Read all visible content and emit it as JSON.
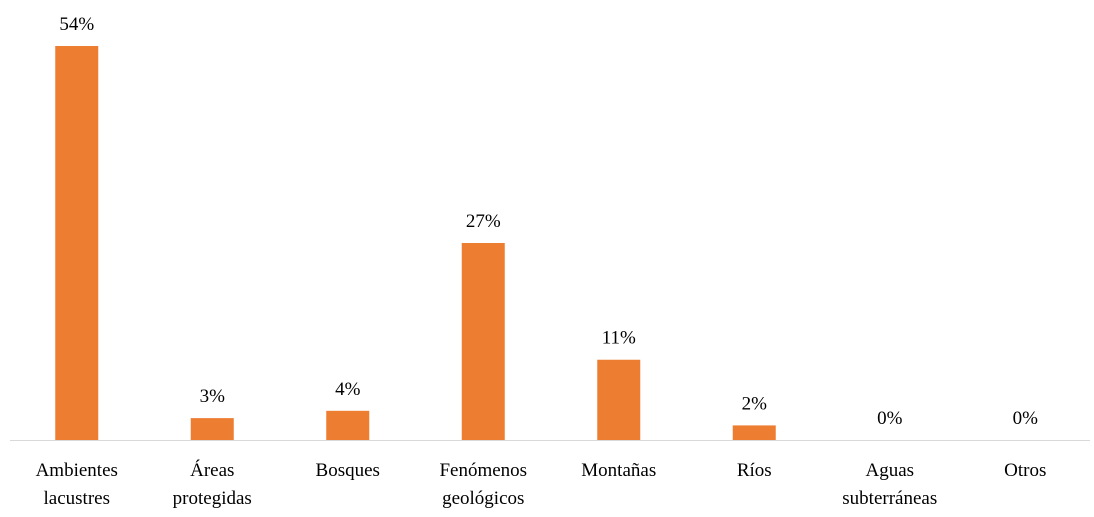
{
  "chart_data": {
    "type": "bar",
    "categories": [
      "Ambientes lacustres",
      "Áreas protegidas",
      "Bosques",
      "Fenómenos geológicos",
      "Montañas",
      "Ríos",
      "Aguas subterráneas",
      "Otros"
    ],
    "values": [
      54,
      3,
      4,
      27,
      11,
      2,
      0,
      0
    ],
    "value_labels": [
      "54%",
      "3%",
      "4%",
      "27%",
      "11%",
      "2%",
      "0%",
      "0%"
    ],
    "color": "#ed7d31"
  }
}
